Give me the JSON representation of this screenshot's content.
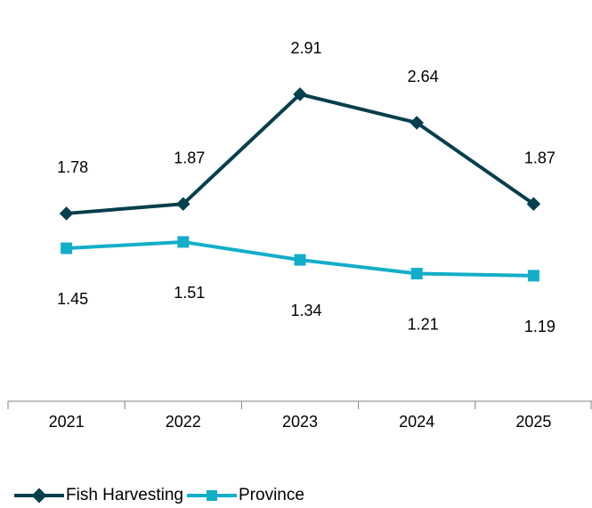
{
  "chart_data": {
    "type": "line",
    "categories": [
      "2021",
      "2022",
      "2023",
      "2024",
      "2025"
    ],
    "series": [
      {
        "name": "Fish Harvesting",
        "values": [
          1.78,
          1.87,
          2.91,
          2.64,
          1.87
        ],
        "color": "#063f4d",
        "marker": "diamond"
      },
      {
        "name": "Province",
        "values": [
          1.45,
          1.51,
          1.34,
          1.21,
          1.19
        ],
        "color": "#12aec9",
        "marker": "square"
      }
    ],
    "title": "",
    "xlabel": "",
    "ylabel": "",
    "ylim": [
      0,
      3.5
    ],
    "grid": false,
    "legend_position": "bottom-left"
  }
}
